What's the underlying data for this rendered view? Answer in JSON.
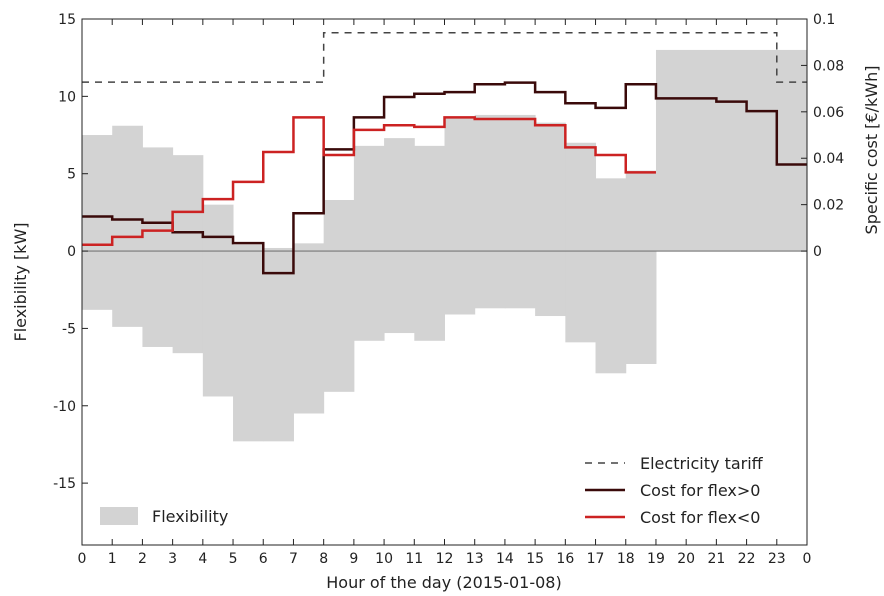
{
  "chart_data": {
    "type": "step",
    "title": "",
    "xlabel": "Hour of the day (2015-01-08)",
    "ylabel_left": "Flexibility [kW]",
    "ylabel_right": "Specific cost [€/kWh]",
    "xlim": [
      0,
      24
    ],
    "ylim_left": [
      -19,
      15
    ],
    "ylim_right": [
      0,
      0.1
    ],
    "x_ticks": [
      "0",
      "1",
      "2",
      "3",
      "4",
      "5",
      "6",
      "7",
      "8",
      "9",
      "10",
      "11",
      "12",
      "13",
      "14",
      "15",
      "16",
      "17",
      "18",
      "19",
      "20",
      "21",
      "22",
      "23",
      "0"
    ],
    "y_ticks_left": [
      "15",
      "10",
      "5",
      "0",
      "-5",
      "-10",
      "-15"
    ],
    "y_ticks_right": [
      "0.1",
      "0.08",
      "0.06",
      "0.04",
      "0.02",
      "0"
    ],
    "legend_placement": "bottom-right",
    "series": [
      {
        "name": "Flexibility",
        "kind": "filled-step",
        "color": "#d3d3d3",
        "upper": [
          7.5,
          8.1,
          6.7,
          6.2,
          3.0,
          0.4,
          0.2,
          0.5,
          3.3,
          6.8,
          7.3,
          6.8,
          8.6,
          8.8,
          8.8,
          8.3,
          7.0,
          4.7,
          5.2,
          13.0,
          13.0,
          13.0,
          13.0,
          13.0
        ],
        "lower": [
          -3.8,
          -4.9,
          -6.2,
          -6.6,
          -9.4,
          -12.3,
          -12.3,
          -10.5,
          -9.1,
          -5.8,
          -5.3,
          -5.8,
          -4.1,
          -3.7,
          -3.7,
          -4.2,
          -5.9,
          -7.9,
          -7.3,
          0,
          0,
          0,
          0,
          0
        ]
      },
      {
        "name": "Electricity tariff",
        "kind": "dashed-step",
        "color": "#444444",
        "axis": "right",
        "values": [
          0.0728,
          0.0728,
          0.0728,
          0.0728,
          0.0728,
          0.0728,
          0.0728,
          0.0728,
          0.0941,
          0.0941,
          0.0941,
          0.0941,
          0.0941,
          0.0941,
          0.0941,
          0.0941,
          0.0941,
          0.0941,
          0.0941,
          0.0941,
          0.0941,
          0.0941,
          0.0941,
          0.0728
        ]
      },
      {
        "name": "Cost for flex>0",
        "kind": "step",
        "color": "#3a0a0a",
        "axis": "right",
        "values": [
          0.0149,
          0.0136,
          0.0122,
          0.0081,
          0.0061,
          0.0034,
          -0.0095,
          0.0163,
          0.0438,
          0.0576,
          0.0664,
          0.0678,
          0.0685,
          0.0719,
          0.0726,
          0.0685,
          0.0637,
          0.0617,
          0.0719,
          0.0658,
          0.0658,
          0.0644,
          0.0603,
          0.0373
        ]
      },
      {
        "name": "Cost for flex<0",
        "kind": "step",
        "color": "#cc2222",
        "axis": "right",
        "values": [
          0.0027,
          0.0061,
          0.0088,
          0.0169,
          0.0224,
          0.0298,
          0.0427,
          0.0576,
          0.0414,
          0.0522,
          0.0542,
          0.0535,
          0.0576,
          0.0569,
          0.0569,
          0.0542,
          0.0447,
          0.0414,
          0.0339
        ]
      }
    ]
  }
}
